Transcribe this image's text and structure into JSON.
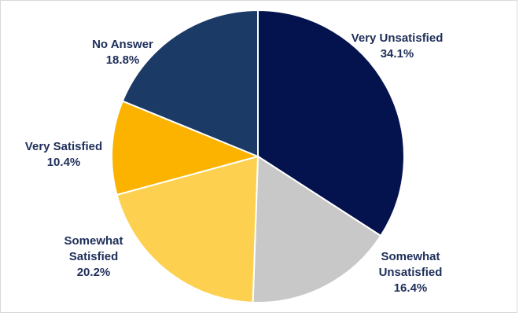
{
  "chart_data": {
    "type": "pie",
    "title": "",
    "start_angle_deg": 0,
    "direction": "clockwise",
    "slices": [
      {
        "label_lines": [
          "Very Unsatisfied"
        ],
        "percent_label": "34.1%",
        "value": 34.1,
        "color": "#04134d",
        "label_color": "#1f2f5a"
      },
      {
        "label_lines": [
          "Somewhat",
          "Unsatisfied"
        ],
        "percent_label": "16.4%",
        "value": 16.4,
        "color": "#c8c8c8",
        "label_color": "#1f2f5a"
      },
      {
        "label_lines": [
          "Somewhat",
          "Satisfied"
        ],
        "percent_label": "20.2%",
        "value": 20.2,
        "color": "#fdd14f",
        "label_color": "#1f2f5a"
      },
      {
        "label_lines": [
          "Very Satisfied"
        ],
        "percent_label": "10.4%",
        "value": 10.4,
        "color": "#fbb300",
        "label_color": "#1f2f5a"
      },
      {
        "label_lines": [
          "No Answer"
        ],
        "percent_label": "18.8%",
        "value": 18.8,
        "color": "#1b3a66",
        "label_color": "#1f2f5a"
      }
    ]
  }
}
